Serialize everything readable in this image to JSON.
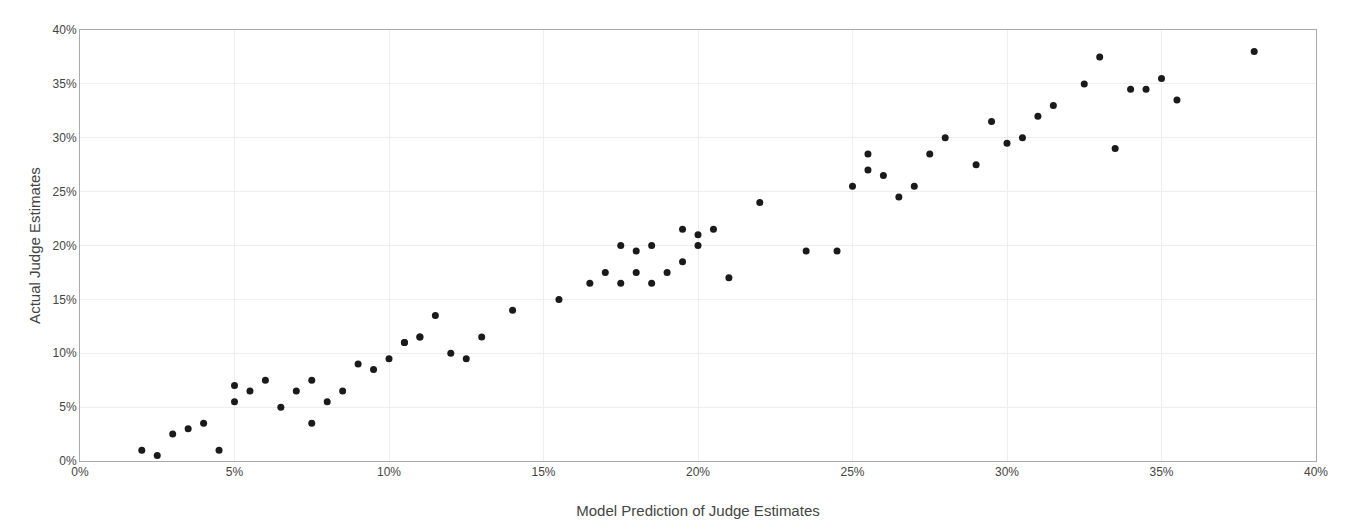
{
  "chart_data": {
    "type": "scatter",
    "xlabel": "Model Prediction of Judge Estimates",
    "ylabel": "Actual Judge Estimates",
    "x": [
      0.02,
      0.025,
      0.03,
      0.035,
      0.04,
      0.045,
      0.05,
      0.05,
      0.055,
      0.06,
      0.065,
      0.07,
      0.075,
      0.075,
      0.08,
      0.085,
      0.09,
      0.095,
      0.1,
      0.105,
      0.105,
      0.11,
      0.11,
      0.115,
      0.12,
      0.125,
      0.13,
      0.14,
      0.155,
      0.165,
      0.17,
      0.175,
      0.175,
      0.18,
      0.18,
      0.185,
      0.185,
      0.19,
      0.195,
      0.195,
      0.2,
      0.2,
      0.205,
      0.21,
      0.22,
      0.235,
      0.245,
      0.25,
      0.255,
      0.255,
      0.26,
      0.265,
      0.27,
      0.275,
      0.28,
      0.29,
      0.295,
      0.3,
      0.305,
      0.31,
      0.315,
      0.325,
      0.33,
      0.335,
      0.34,
      0.345,
      0.35,
      0.355,
      0.38
    ],
    "values": [
      0.01,
      0.005,
      0.025,
      0.03,
      0.035,
      0.01,
      0.055,
      0.07,
      0.065,
      0.075,
      0.05,
      0.065,
      0.075,
      0.035,
      0.055,
      0.065,
      0.09,
      0.085,
      0.095,
      0.11,
      0.11,
      0.115,
      0.115,
      0.135,
      0.1,
      0.095,
      0.115,
      0.14,
      0.15,
      0.165,
      0.175,
      0.165,
      0.2,
      0.175,
      0.195,
      0.2,
      0.165,
      0.175,
      0.185,
      0.215,
      0.2,
      0.21,
      0.215,
      0.17,
      0.24,
      0.195,
      0.195,
      0.255,
      0.27,
      0.285,
      0.265,
      0.245,
      0.255,
      0.285,
      0.3,
      0.275,
      0.315,
      0.295,
      0.3,
      0.32,
      0.33,
      0.35,
      0.375,
      0.29,
      0.345,
      0.345,
      0.355,
      0.335,
      0.38
    ],
    "color": "#1a1a1a",
    "xlim": [
      0,
      0.4
    ],
    "ylim": [
      0,
      0.4
    ],
    "xticks": [
      {
        "value": 0.0,
        "label": "0%"
      },
      {
        "value": 0.05,
        "label": "5%"
      },
      {
        "value": 0.1,
        "label": "10%"
      },
      {
        "value": 0.15,
        "label": "15%"
      },
      {
        "value": 0.2,
        "label": "20%"
      },
      {
        "value": 0.25,
        "label": "25%"
      },
      {
        "value": 0.3,
        "label": "30%"
      },
      {
        "value": 0.35,
        "label": "35%"
      },
      {
        "value": 0.4,
        "label": "40%"
      }
    ],
    "yticks": [
      {
        "value": 0.0,
        "label": "0%"
      },
      {
        "value": 0.05,
        "label": "5%"
      },
      {
        "value": 0.1,
        "label": "10%"
      },
      {
        "value": 0.15,
        "label": "15%"
      },
      {
        "value": 0.2,
        "label": "20%"
      },
      {
        "value": 0.25,
        "label": "25%"
      },
      {
        "value": 0.3,
        "label": "30%"
      },
      {
        "value": 0.35,
        "label": "35%"
      },
      {
        "value": 0.4,
        "label": "40%"
      }
    ],
    "grid": true
  }
}
